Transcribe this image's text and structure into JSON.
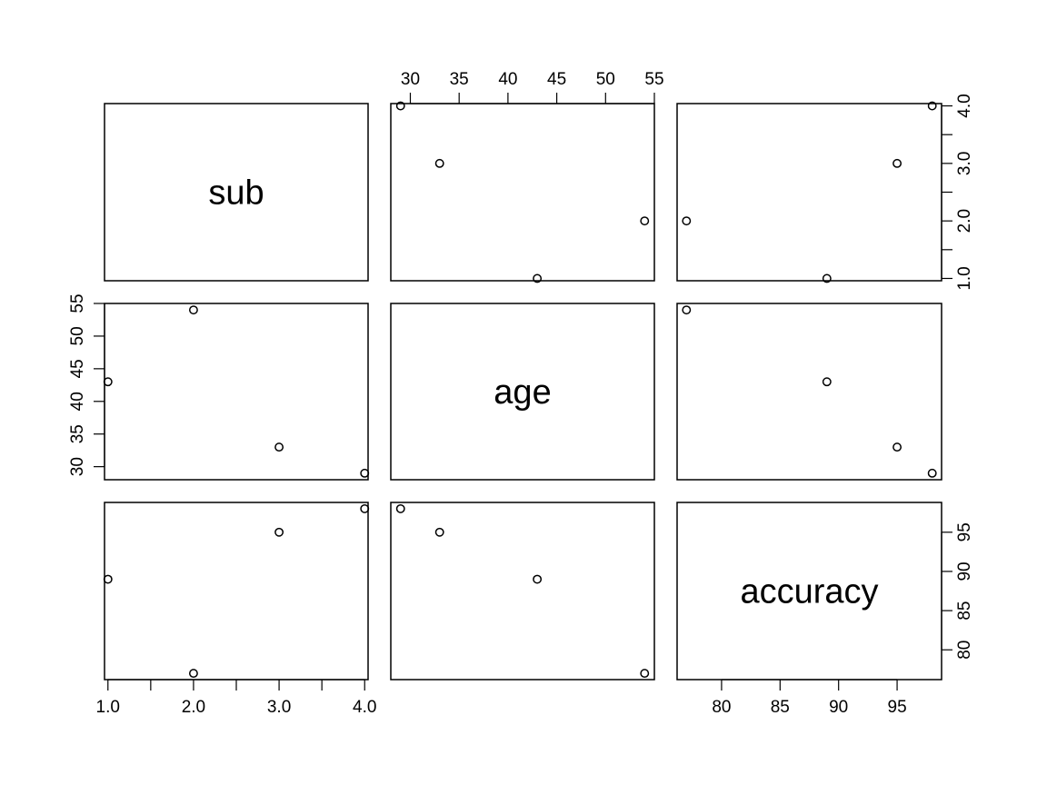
{
  "chart_data": {
    "type": "scatter",
    "variables": [
      {
        "name": "sub",
        "values": [
          1,
          2,
          3,
          4
        ],
        "range": [
          0.96,
          4.04
        ],
        "ticks": [
          1,
          1.5,
          2,
          2.5,
          3,
          3.5,
          4
        ],
        "tick_labels": [
          "1.0",
          "",
          "2.0",
          "",
          "3.0",
          "",
          "4.0"
        ]
      },
      {
        "name": "age",
        "values": [
          43,
          54,
          33,
          29
        ],
        "range": [
          28,
          55
        ],
        "ticks": [
          30,
          35,
          40,
          45,
          50,
          55
        ],
        "tick_labels": [
          "30",
          "35",
          "40",
          "45",
          "50",
          "55"
        ]
      },
      {
        "name": "accuracy",
        "values": [
          89,
          77,
          95,
          98
        ],
        "range": [
          76.2,
          98.8
        ],
        "ticks": [
          80,
          85,
          90,
          95
        ],
        "tick_labels": [
          "80",
          "85",
          "90",
          "95"
        ]
      }
    ]
  }
}
